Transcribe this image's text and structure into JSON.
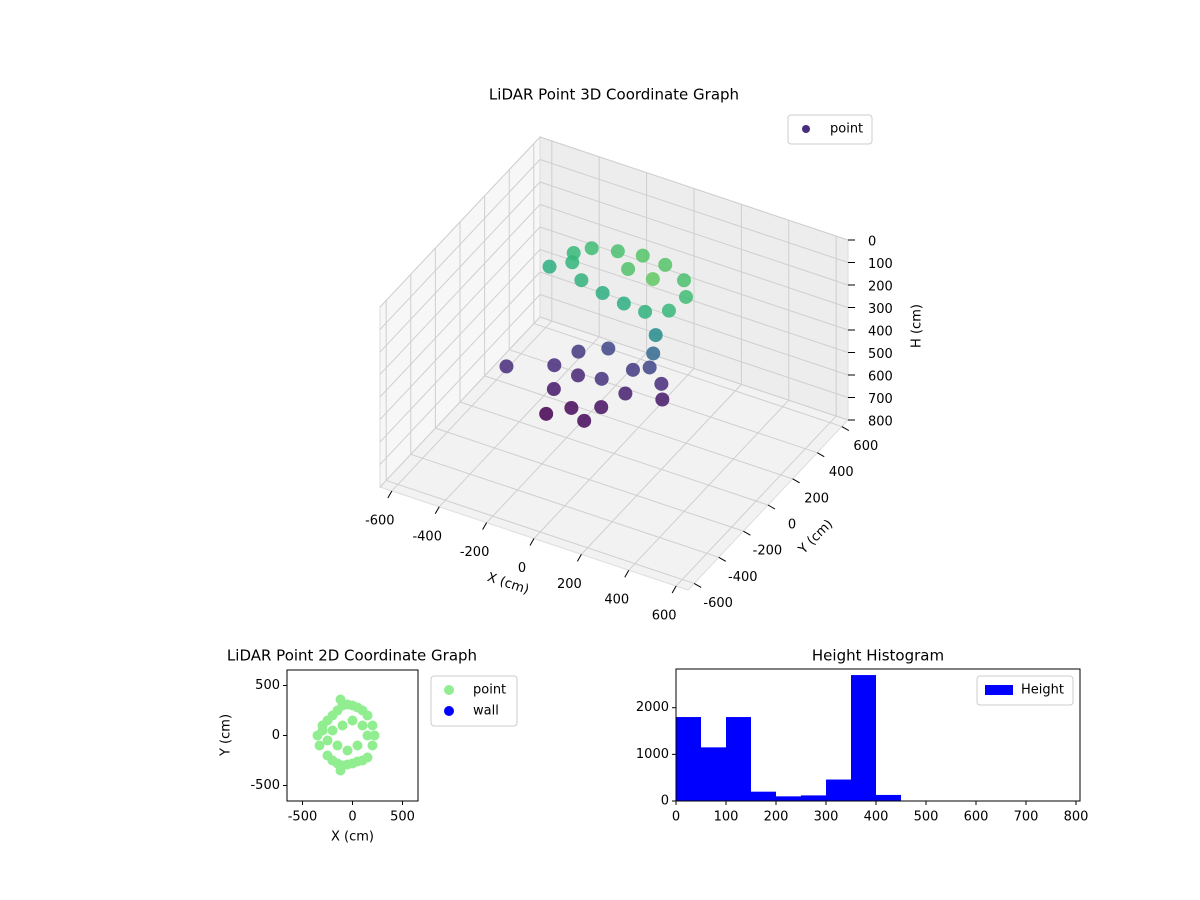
{
  "chart_data": [
    {
      "type": "scatter3d",
      "title": "LiDAR Point 3D Coordinate Graph",
      "x_label": "X (cm)",
      "y_label": "Y (cm)",
      "z_label": "H (cm)",
      "xlim": [
        -650,
        650
      ],
      "ylim": [
        -650,
        650
      ],
      "zlim": [
        800,
        0
      ],
      "xticks": [
        -600,
        -400,
        -200,
        0,
        200,
        400,
        600
      ],
      "yticks": [
        -600,
        -400,
        -200,
        0,
        200,
        400,
        600
      ],
      "zticks": [
        0,
        100,
        200,
        300,
        400,
        500,
        600,
        700,
        800
      ],
      "colormap": "viridis",
      "legend": "upper right",
      "grid": true,
      "series": [
        {
          "name": "point",
          "color": "#472d7b",
          "x": [
            -350,
            -300,
            -250,
            -150,
            -50,
            50,
            150,
            200,
            180,
            100,
            0,
            -100,
            -200,
            -280,
            60,
            -60,
            150,
            150,
            140,
            200,
            230,
            -200,
            -150,
            -50,
            50,
            100,
            80,
            -50,
            -150,
            -100,
            0,
            -120,
            30,
            -350
          ],
          "y": [
            150,
            250,
            300,
            320,
            330,
            320,
            280,
            200,
            100,
            60,
            80,
            100,
            120,
            200,
            200,
            230,
            50,
            30,
            20,
            0,
            -50,
            -100,
            -200,
            -250,
            -200,
            -100,
            0,
            50,
            0,
            -100,
            -100,
            -320,
            -300,
            -200
          ],
          "h": [
            180,
            160,
            150,
            140,
            130,
            130,
            140,
            150,
            160,
            170,
            180,
            180,
            170,
            165,
            120,
            135,
            250,
            320,
            380,
            420,
            450,
            420,
            450,
            470,
            460,
            440,
            400,
            380,
            400,
            430,
            410,
            480,
            470,
            420
          ]
        }
      ]
    },
    {
      "type": "scatter",
      "title": "LiDAR Point 2D Coordinate Graph",
      "x_label": "X (cm)",
      "y_label": "Y (cm)",
      "xlim": [
        -655,
        655
      ],
      "ylim": [
        -655,
        655
      ],
      "xticks": [
        -500,
        0,
        500
      ],
      "yticks": [
        -500,
        0,
        500
      ],
      "legend": "outside right",
      "series": [
        {
          "name": "point",
          "color": "#90ee90",
          "x": [
            -120,
            -120,
            -300,
            -350,
            -330,
            -250,
            -200,
            -150,
            -100,
            -50,
            0,
            50,
            100,
            150,
            200,
            220,
            200,
            150,
            100,
            50,
            0,
            -50,
            -100,
            -150,
            -200,
            -250,
            -300,
            -200,
            -100,
            0,
            100,
            -150,
            -50,
            50,
            150,
            -250
          ],
          "y": [
            360,
            -350,
            100,
            0,
            -100,
            -200,
            -250,
            -280,
            -300,
            -290,
            -280,
            -260,
            -250,
            -220,
            -100,
            0,
            100,
            200,
            250,
            280,
            300,
            310,
            300,
            250,
            200,
            150,
            50,
            50,
            100,
            150,
            100,
            -100,
            -150,
            -100,
            0,
            -50
          ]
        },
        {
          "name": "wall",
          "color": "#0000ff",
          "x": [],
          "y": []
        }
      ]
    },
    {
      "type": "histogram",
      "title": "Height Histogram",
      "bins": [
        0,
        50,
        100,
        150,
        200,
        250,
        300,
        350,
        400,
        450,
        500,
        550,
        600,
        650,
        700,
        750,
        800
      ],
      "series": [
        {
          "name": "Height",
          "color": "#0000ff",
          "values": [
            1800,
            1150,
            1800,
            200,
            100,
            120,
            460,
            2700,
            130,
            0,
            0,
            0,
            0,
            0,
            0,
            0
          ]
        }
      ],
      "xlim": [
        0,
        808
      ],
      "ylim": [
        0,
        2830
      ],
      "xticks": [
        0,
        100,
        200,
        300,
        400,
        500,
        600,
        700,
        800
      ],
      "yticks": [
        0,
        1000,
        2000
      ],
      "legend": "upper right"
    }
  ]
}
